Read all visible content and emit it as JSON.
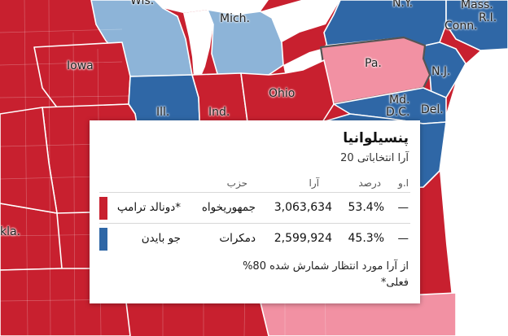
{
  "colors": {
    "republican": "#c8202f",
    "democrat": "#2f67a6",
    "lean_democrat": "#8db4d8",
    "selected_state": "#f291a3",
    "lake": "#ffffff"
  },
  "map": {
    "state_labels": {
      "wis": "Wis.",
      "mich": "Mich.",
      "ny": "N.Y.",
      "mass": "Mass.",
      "ri": "R.I.",
      "conn": "Conn.",
      "iowa": "Iowa",
      "pa": "Pa.",
      "nj": "N.J.",
      "ohio": "Ohio",
      "ill": "Ill.",
      "ind": "Ind.",
      "md": "Md.",
      "dc": "D.C.",
      "del": "Del.",
      "okla": "kla."
    }
  },
  "popup": {
    "title": "پنسیلوانیا",
    "subtitle": "آرا انتخاباتی 20",
    "headers": {
      "ev": "ا.و",
      "percent": "درصد",
      "votes": "آرا",
      "party": "حزب"
    },
    "rows": [
      {
        "candidate": "*دونالد ترامپ",
        "party": "جمهوریخواه",
        "votes": "3,063,634",
        "percent": "53.4%",
        "ev": "—",
        "color": "#c8202f"
      },
      {
        "candidate": "جو بایدن",
        "party": "دمکرات",
        "votes": "2,599,924",
        "percent": "45.3%",
        "ev": "—",
        "color": "#2f67a6"
      }
    ],
    "footnote_line1": "از آرا مورد انتظار شمارش شده 80%",
    "footnote_line2": "فعلی*"
  }
}
